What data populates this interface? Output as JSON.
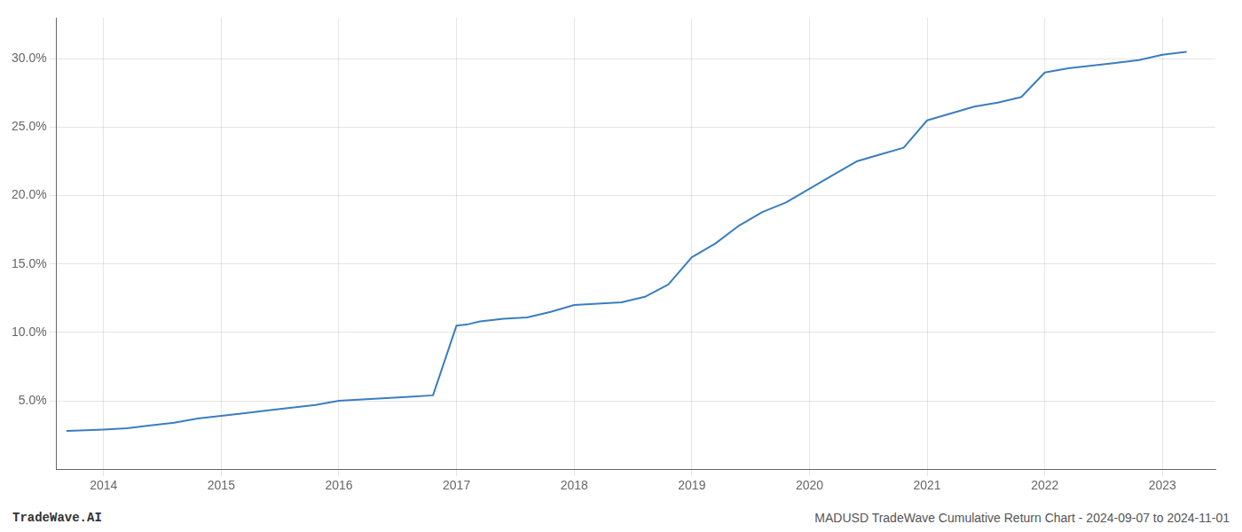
{
  "chart_data": {
    "type": "line",
    "annotations": [
      "TradeWave.AI",
      "MADUSD TradeWave Cumulative Return Chart - 2024-09-07 to 2024-11-01"
    ],
    "x": [
      2013.69,
      2014.0,
      2014.2,
      2014.4,
      2014.6,
      2014.8,
      2015.0,
      2015.2,
      2015.4,
      2015.6,
      2015.8,
      2016.0,
      2016.2,
      2016.4,
      2016.6,
      2016.8,
      2017.0,
      2017.1,
      2017.2,
      2017.3,
      2017.4,
      2017.6,
      2017.8,
      2018.0,
      2018.2,
      2018.4,
      2018.6,
      2018.8,
      2019.0,
      2019.2,
      2019.4,
      2019.6,
      2019.8,
      2020.0,
      2020.1,
      2020.2,
      2020.4,
      2020.6,
      2020.8,
      2021.0,
      2021.2,
      2021.4,
      2021.6,
      2021.8,
      2022.0,
      2022.2,
      2022.4,
      2022.6,
      2022.8,
      2023.0,
      2023.2
    ],
    "values": [
      2.8,
      2.9,
      3.0,
      3.2,
      3.4,
      3.7,
      3.9,
      4.1,
      4.3,
      4.5,
      4.7,
      5.0,
      5.1,
      5.2,
      5.3,
      5.4,
      10.5,
      10.6,
      10.8,
      10.9,
      11.0,
      11.1,
      11.5,
      12.0,
      12.1,
      12.2,
      12.6,
      13.5,
      15.5,
      16.5,
      17.8,
      18.8,
      19.5,
      20.5,
      21.0,
      21.5,
      22.5,
      23.0,
      23.5,
      25.5,
      26.0,
      26.5,
      26.8,
      27.2,
      29.0,
      29.3,
      29.5,
      29.7,
      29.9,
      30.3,
      30.5
    ],
    "color": "#3a7ebf",
    "xlim": [
      2013.6,
      2023.45
    ],
    "xticks": [
      2014,
      2015,
      2016,
      2017,
      2018,
      2019,
      2020,
      2021,
      2022,
      2023
    ],
    "ylim": [
      0,
      33
    ],
    "yticks": [
      {
        "value": 5.0,
        "label": "5.0%"
      },
      {
        "value": 10.0,
        "label": "10.0%"
      },
      {
        "value": 15.0,
        "label": "15.0%"
      },
      {
        "value": 20.0,
        "label": "20.0%"
      },
      {
        "value": 25.0,
        "label": "25.0%"
      },
      {
        "value": 30.0,
        "label": "30.0%"
      }
    ],
    "grid": true
  }
}
